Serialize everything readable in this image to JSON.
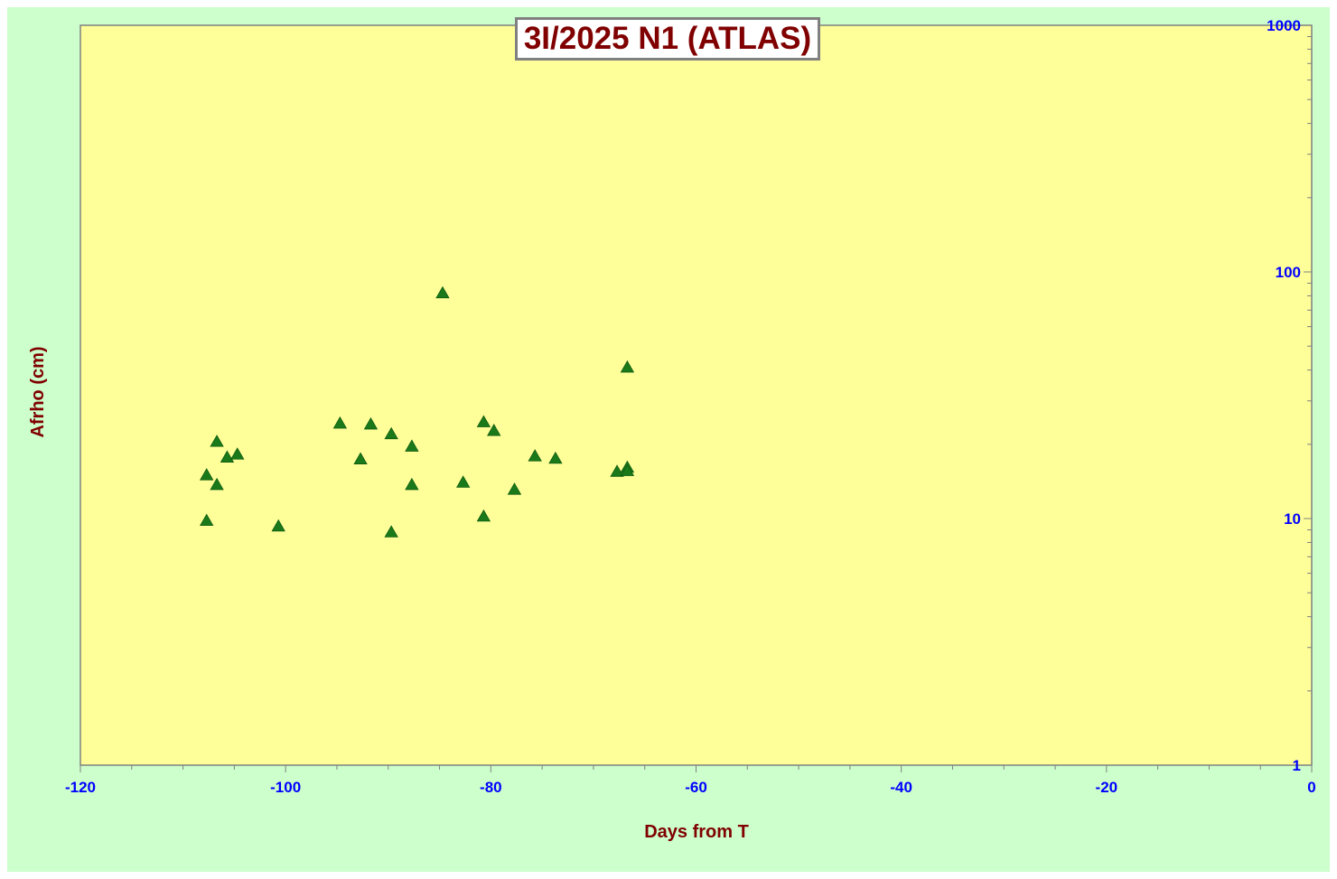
{
  "chart_data": {
    "type": "scatter",
    "title": "3I/2025 N1 (ATLAS)",
    "xlabel": "Days from T",
    "ylabel": "Afrho (cm)",
    "xlim": [
      -120,
      0
    ],
    "ylim": [
      1,
      1000
    ],
    "y_scale": "log",
    "x_ticks": [
      "-120",
      "-100",
      "-80",
      "-60",
      "-40",
      "-20",
      "0"
    ],
    "y_ticks": [
      "1",
      "10",
      "100",
      "1000"
    ],
    "grid": false,
    "legend": "none",
    "marker": "triangle",
    "colors": {
      "page_background": "#ccffcc",
      "plot_background": "#ffff99",
      "marker": "#1a7a1a",
      "tick_labels": "#0000ff",
      "axis_titles": "#800000",
      "title": "#800000"
    },
    "series": [
      {
        "points": [
          [
            -107.7,
            15.0
          ],
          [
            -107.7,
            9.8
          ],
          [
            -106.7,
            20.5
          ],
          [
            -106.7,
            13.7
          ],
          [
            -105.7,
            17.7
          ],
          [
            -104.7,
            18.2
          ],
          [
            -100.7,
            9.3
          ],
          [
            -94.7,
            24.3
          ],
          [
            -92.7,
            17.4
          ],
          [
            -91.7,
            24.1
          ],
          [
            -89.7,
            22.0
          ],
          [
            -89.7,
            8.8
          ],
          [
            -87.7,
            19.6
          ],
          [
            -87.7,
            13.7
          ],
          [
            -84.7,
            82.0
          ],
          [
            -82.7,
            14.0
          ],
          [
            -80.7,
            24.6
          ],
          [
            -80.7,
            10.2
          ],
          [
            -79.7,
            22.7
          ],
          [
            -77.7,
            13.1
          ],
          [
            -75.7,
            17.9
          ],
          [
            -73.7,
            17.5
          ],
          [
            -67.7,
            15.5
          ],
          [
            -66.7,
            16.1
          ],
          [
            -66.7,
            15.6
          ],
          [
            -66.7,
            41.0
          ]
        ]
      }
    ]
  }
}
